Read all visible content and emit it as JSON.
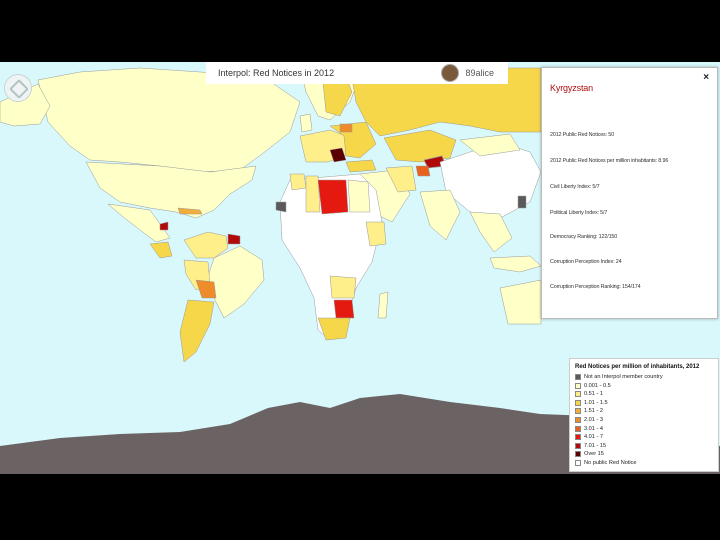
{
  "header": {
    "title": "Interpol: Red Notices in 2012",
    "username": "89alice"
  },
  "detail_panel": {
    "close_label": "×",
    "country": "Kyrgyzstan",
    "stats": [
      "2012 Public Red Notices: 50",
      "2012 Public Red Notices per million inhabitants: 8.96",
      "Civil Liberty Index: 5/7",
      "Political Liberty Index: 5/7",
      "Democracy Ranking: 122/150",
      "Corruption Perception Index: 24",
      "Corruption Perception Ranking: 154/174"
    ]
  },
  "legend": {
    "title": "Red Notices per million of inhabitants, 2012",
    "items": [
      {
        "label": "Not an Interpol member country",
        "color": "#5a5a5a"
      },
      {
        "label": "0.001 - 0.5",
        "color": "#ffffc8"
      },
      {
        "label": "0.51 - 1",
        "color": "#ffef8a"
      },
      {
        "label": "1.01 - 1.5",
        "color": "#f7d74a"
      },
      {
        "label": "1.51 - 2",
        "color": "#f2ad3a"
      },
      {
        "label": "2.01 - 3",
        "color": "#ee8c2a"
      },
      {
        "label": "3.01 - 4",
        "color": "#e8621e"
      },
      {
        "label": "4.01 - 7",
        "color": "#e41a10"
      },
      {
        "label": "7.01 - 15",
        "color": "#b00a0a"
      },
      {
        "label": "Over 15",
        "color": "#5a0000"
      },
      {
        "label": "No public Red Notice",
        "color": "#ffffff"
      }
    ]
  },
  "map_colors": {
    "ocean": "#d8f8fb",
    "antarctica": "#6b6363",
    "no_notice": "#ffffff",
    "border": "#999999"
  }
}
